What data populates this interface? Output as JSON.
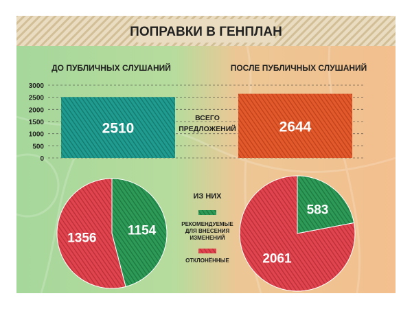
{
  "title": "ПОПРАВКИ В ГЕНПЛАН",
  "colors": {
    "banner_bg": "#e9dcc0",
    "banner_stripe": "#d2bf97",
    "left_bg": "#a8d79c",
    "right_bg": "#f2c08f",
    "teal": "#1f9c8f",
    "orange": "#e25a2c",
    "red": "#e0454f",
    "green": "#2d9a58",
    "text_dark": "#2b2b2b"
  },
  "chart_data": [
    {
      "type": "bar",
      "categories": [
        "ДО ПУБЛИЧНЫХ СЛУШАНИЙ",
        "ПОСЛЕ ПУБЛИЧНЫХ СЛУШАНИЙ"
      ],
      "values": [
        2510,
        2644
      ],
      "data_labels": [
        "2510",
        "2644"
      ],
      "center_label": [
        "ВСЕГО",
        "ПРЕДЛОЖЕНИЙ"
      ],
      "yticks": [
        "3000",
        "2500",
        "2000",
        "1500",
        "1000",
        "500",
        "0"
      ],
      "ylim": [
        0,
        3000
      ],
      "grid": true
    },
    {
      "type": "pie",
      "name": "ДО ПУБЛИЧНЫХ СЛУШАНИЙ",
      "labels": [
        "рекомендуемые для внесения изменений",
        "отклонённые"
      ],
      "values": [
        1154,
        1356
      ]
    },
    {
      "type": "pie",
      "name": "ПОСЛЕ ПУБЛИЧНЫХ СЛУШАНИЙ",
      "labels": [
        "рекомендуемые для внесения изменений",
        "отклонённые"
      ],
      "values": [
        583,
        2061
      ]
    }
  ],
  "legend": {
    "heading": "ИЗ НИХ",
    "recommended": [
      "РЕКОМЕНДУЕМЫЕ",
      "ДЛЯ ВНЕСЕНИЯ",
      "ИЗМЕНЕНИЙ"
    ],
    "rejected": "ОТКЛОНЁННЫЕ"
  }
}
